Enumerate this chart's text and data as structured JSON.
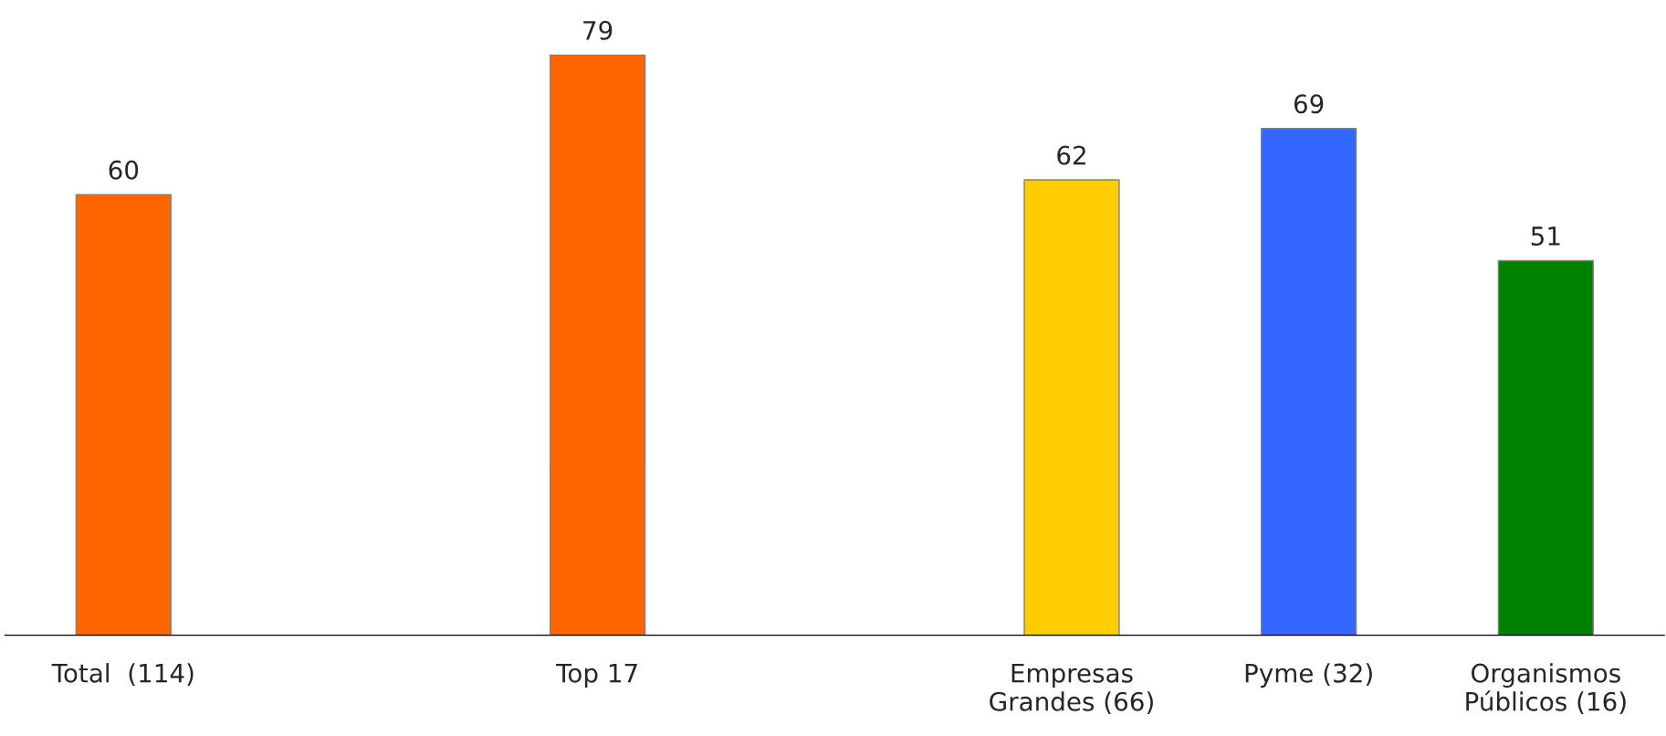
{
  "chart_data": {
    "type": "bar",
    "categories": [
      "Total  (114)",
      null,
      "Top 17",
      null,
      "Empresas\nGrandes (66)",
      "Pyme (32)",
      "Organismos\nPúblicos (16)"
    ],
    "values": [
      60,
      null,
      79,
      null,
      62,
      69,
      51
    ],
    "colors": [
      "#ff6600",
      "#ff6600",
      "#ff6600",
      "#ff6600",
      "#ffcc00",
      "#3366ff",
      "#008000"
    ],
    "data_labels": true,
    "grid": false,
    "legend": false
  }
}
